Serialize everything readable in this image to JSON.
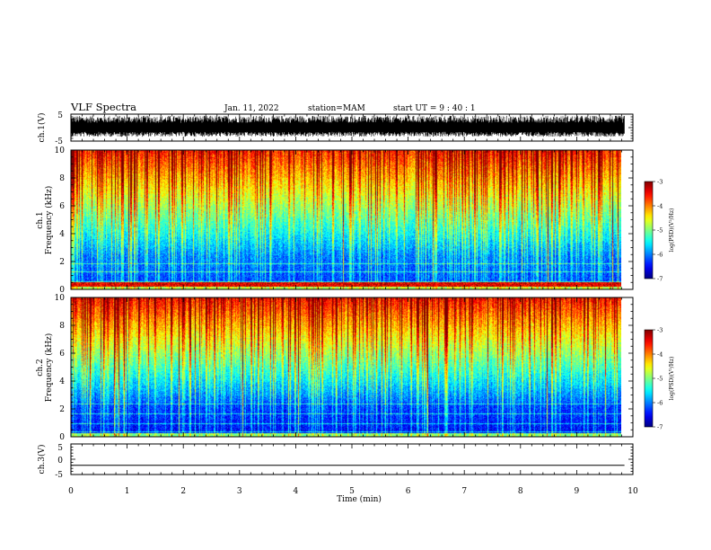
{
  "header": {
    "title": "VLF Spectra",
    "date": "Jan. 11, 2022",
    "station": "station=MAM",
    "start_ut": "start UT =  9 : 40 : 1"
  },
  "chart_data": [
    {
      "type": "line",
      "panel": "ch1-waveform",
      "ylabel": "ch.1(V)",
      "ylim": [
        -5,
        5
      ],
      "yticks": [
        "5",
        "-5"
      ],
      "description_of_signal": "dense broadband noise, approx -3 to 4 V",
      "x_units": "min",
      "xlim": [
        0,
        10
      ]
    },
    {
      "type": "heatmap",
      "panel": "ch1-spectrogram",
      "ylabel": "ch.1\nFrequency (kHz)",
      "ylim": [
        0,
        10
      ],
      "yticks": [
        "0",
        "2",
        "4",
        "6",
        "8",
        "10"
      ],
      "colorbar": {
        "label": "log(PSD)(V²/Hz)",
        "range": [
          -7,
          -3
        ],
        "ticks": [
          "-3",
          "-4",
          "-5",
          "-6",
          "-7"
        ]
      },
      "xlim": [
        0,
        10
      ]
    },
    {
      "type": "heatmap",
      "panel": "ch2-spectrogram",
      "ylabel": "ch.2\nFrequency (kHz)",
      "ylim": [
        0,
        10
      ],
      "yticks": [
        "0",
        "2",
        "4",
        "6",
        "8",
        "10"
      ],
      "colorbar": {
        "label": "log(PSD)(V²/Hz)",
        "range": [
          -7,
          -3
        ],
        "ticks": [
          "-3",
          "-4",
          "-5",
          "-6",
          "-7"
        ]
      },
      "xlim": [
        0,
        10
      ]
    },
    {
      "type": "line",
      "panel": "ch3-waveform",
      "ylabel": "ch.3(V)",
      "ylim": [
        -5,
        5
      ],
      "yticks": [
        "5",
        "0",
        "-5"
      ],
      "x": [
        0,
        9.85
      ],
      "y": [
        -2,
        -2
      ]
    }
  ],
  "xaxis": {
    "label": "Time (min)",
    "ticks": [
      "0",
      "1",
      "2",
      "3",
      "4",
      "5",
      "6",
      "7",
      "8",
      "9",
      "10"
    ],
    "range": [
      0,
      10
    ],
    "data_end": 9.85
  }
}
